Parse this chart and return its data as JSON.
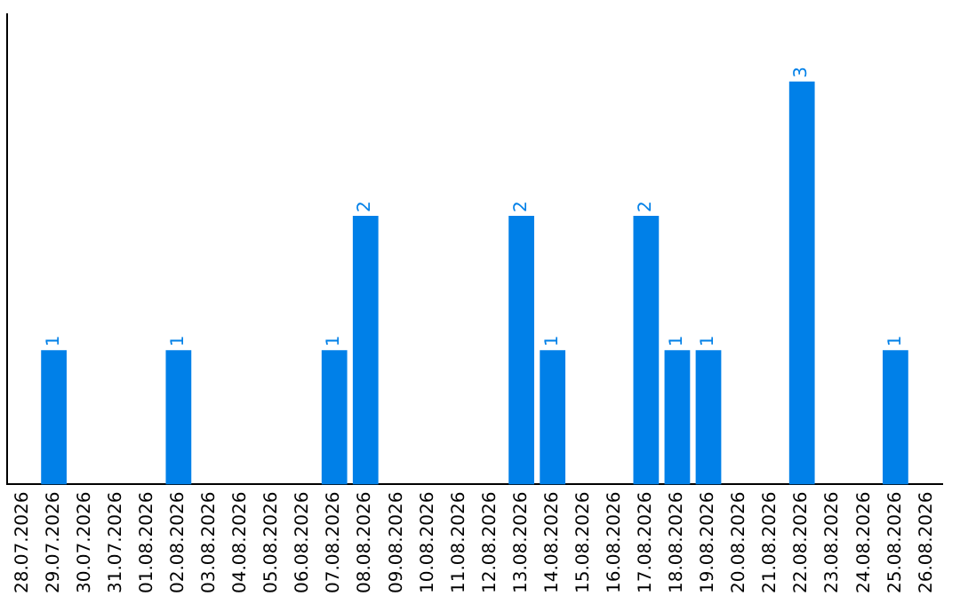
{
  "chart_data": {
    "type": "bar",
    "categories": [
      "28.07.2026",
      "29.07.2026",
      "30.07.2026",
      "31.07.2026",
      "01.08.2026",
      "02.08.2026",
      "03.08.2026",
      "04.08.2026",
      "05.08.2026",
      "06.08.2026",
      "07.08.2026",
      "08.08.2026",
      "09.08.2026",
      "10.08.2026",
      "11.08.2026",
      "12.08.2026",
      "13.08.2026",
      "14.08.2026",
      "15.08.2026",
      "16.08.2026",
      "17.08.2026",
      "18.08.2026",
      "19.08.2026",
      "20.08.2026",
      "21.08.2026",
      "22.08.2026",
      "23.08.2026",
      "24.08.2026",
      "25.08.2026",
      "26.08.2026"
    ],
    "values": [
      0,
      1,
      0,
      0,
      0,
      1,
      0,
      0,
      0,
      0,
      1,
      2,
      0,
      0,
      0,
      0,
      2,
      1,
      0,
      0,
      2,
      1,
      1,
      0,
      0,
      3,
      0,
      0,
      1,
      0
    ],
    "value_labels": [
      null,
      "1",
      null,
      null,
      null,
      "1",
      null,
      null,
      null,
      null,
      "1",
      "2",
      null,
      null,
      null,
      null,
      "2",
      "1",
      null,
      null,
      "2",
      "1",
      "1",
      null,
      null,
      "3",
      null,
      null,
      "1",
      null
    ],
    "color": "#0080e8",
    "grid": false,
    "legend": false,
    "tick_labels": "x"
  }
}
